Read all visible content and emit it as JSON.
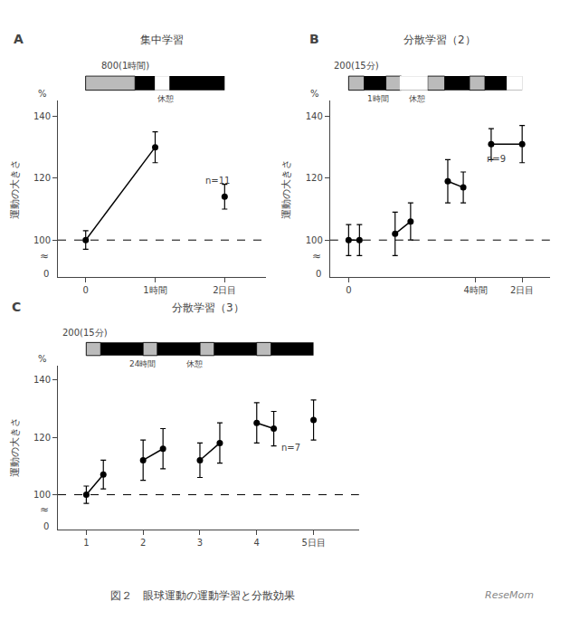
{
  "chart_data": [
    {
      "type": "scatter",
      "panel_label": "A",
      "title": "集中学習",
      "x": [
        0,
        1,
        2
      ],
      "values": [
        100,
        130,
        114
      ],
      "errors": [
        3,
        5,
        4
      ],
      "connect": [
        [
          0,
          1
        ]
      ],
      "color": "#000000",
      "marker": "circle",
      "xlim": [
        -0.4,
        2.6
      ],
      "xticks": [
        0,
        {
          "value": 1,
          "label": "1時間"
        },
        {
          "value": 2,
          "label": "2日目"
        }
      ],
      "ylim": [
        88,
        145
      ],
      "yticks": [
        100,
        120,
        140
      ],
      "ylabel": "運動の大きさ",
      "y_unit": "%",
      "hline": 100,
      "grid": false,
      "axis_break": {
        "symbol": "≈",
        "label": "0"
      },
      "protocol": {
        "label": "800(1時間)",
        "notes": [
          "休憩"
        ]
      },
      "annotations": [
        {
          "text": "n=11",
          "x": 1.7,
          "y": 117
        }
      ]
    },
    {
      "type": "scatter",
      "panel_label": "B",
      "title": "分散学習（2）",
      "x": [
        0.0,
        0.35,
        1.5,
        2.0,
        3.2,
        3.7,
        4.6,
        5.6
      ],
      "values": [
        100,
        100,
        102,
        106,
        119,
        117,
        131,
        131
      ],
      "errors": [
        5,
        5,
        7,
        6,
        7,
        5,
        5,
        6
      ],
      "connect": [
        [
          0,
          1
        ],
        [
          2,
          3
        ],
        [
          4,
          5
        ],
        [
          6,
          7
        ]
      ],
      "color": "#000000",
      "marker": "circle",
      "xlim": [
        -0.6,
        6.5
      ],
      "xticks": [
        0,
        {
          "value": 4.1,
          "label": "4時間"
        },
        {
          "value": 5.6,
          "label": "2日目"
        }
      ],
      "ylim": [
        88,
        145
      ],
      "yticks": [
        100,
        120,
        140
      ],
      "ylabel": "運動の大きさ",
      "y_unit": "%",
      "hline": 100,
      "grid": false,
      "axis_break": {
        "symbol": "≈",
        "label": "0"
      },
      "protocol": {
        "label": "200(15分)",
        "notes": [
          "1時間",
          "休憩"
        ]
      },
      "annotations": [
        {
          "text": "n=9",
          "x": 4.4,
          "y": 124
        }
      ]
    },
    {
      "type": "scatter",
      "panel_label": "C",
      "title": "分散学習（3）",
      "x": [
        1.0,
        1.3,
        2.0,
        2.35,
        3.0,
        3.35,
        4.0,
        4.3,
        5.0
      ],
      "values": [
        100,
        107,
        112,
        116,
        112,
        118,
        125,
        123,
        126
      ],
      "errors": [
        3,
        5,
        7,
        7,
        6,
        7,
        7,
        6,
        7
      ],
      "connect": [
        [
          0,
          1
        ],
        [
          2,
          3
        ],
        [
          4,
          5
        ],
        [
          6,
          7
        ]
      ],
      "color": "#000000",
      "marker": "circle",
      "xlim": [
        0.5,
        5.8
      ],
      "xticks": [
        1,
        2,
        3,
        4,
        {
          "value": 5,
          "label": "5日目"
        }
      ],
      "ylim": [
        88,
        145
      ],
      "yticks": [
        100,
        120,
        140
      ],
      "ylabel": "運動の大きさ",
      "y_unit": "%",
      "hline": 100,
      "grid": false,
      "axis_break": {
        "symbol": "≈",
        "label": "0"
      },
      "protocol": {
        "label": "200(15分)",
        "notes": [
          "24時間",
          "休憩"
        ]
      },
      "annotations": [
        {
          "text": "n=7",
          "x": 4.4,
          "y": 114
        }
      ]
    }
  ],
  "caption": "図２　眼球運動の運動学習と分散効果",
  "credit": {
    "text": "ReseMom",
    "color": "#888888"
  }
}
